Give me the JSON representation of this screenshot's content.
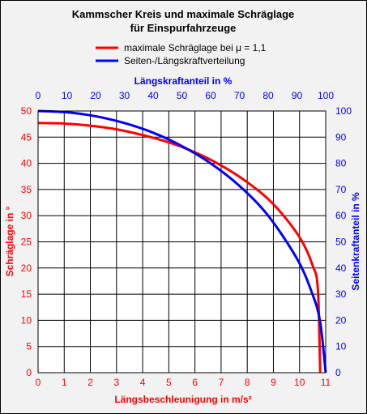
{
  "chart_data": {
    "type": "line",
    "title": [
      "Kammscher Kreis und maximale Schräglage",
      "für Einspurfahrzeuge"
    ],
    "xlabel": "Längsbeschleunigung in m/s²",
    "ylabel": "Schräglage in °",
    "x2label": "Längskraftanteil in %",
    "y2label": "Seitenkraftanteil in %",
    "xlim": [
      0,
      11
    ],
    "ylim": [
      0,
      50
    ],
    "x2lim": [
      0,
      100
    ],
    "y2lim": [
      0,
      100
    ],
    "x_ticks": [
      "0",
      "1",
      "2",
      "3",
      "4",
      "5",
      "6",
      "7",
      "8",
      "9",
      "10",
      "11"
    ],
    "y_ticks": [
      "0",
      "5",
      "10",
      "15",
      "20",
      "25",
      "30",
      "35",
      "40",
      "45",
      "50"
    ],
    "x2_ticks": [
      "0",
      "10",
      "20",
      "30",
      "40",
      "50",
      "60",
      "70",
      "80",
      "90",
      "100"
    ],
    "y2_ticks": [
      "0",
      "10",
      "20",
      "30",
      "40",
      "50",
      "60",
      "70",
      "80",
      "90",
      "100"
    ],
    "grid": true,
    "legend_position": "top-center",
    "colors": {
      "primary": "#ff0000",
      "secondary": "#0000ff",
      "plot_bg": "#ffffff",
      "frame_bg": "#f2f2f2"
    },
    "series": [
      {
        "name": "maximale Schräglage bei μ = 1,1",
        "color": "#ff0000",
        "axes": "primary",
        "x": [
          0,
          1,
          2,
          3,
          4,
          5,
          6,
          7,
          8,
          9,
          10,
          10.5,
          10.7,
          10.79
        ],
        "y": [
          47.7,
          47.6,
          47.2,
          46.5,
          45.4,
          44.0,
          42.1,
          39.6,
          36.4,
          32.2,
          25.9,
          20.5,
          16.0,
          0
        ]
      },
      {
        "name": "Seiten-/Längskraftverteilung",
        "color": "#0000ff",
        "axes": "secondary",
        "x": [
          0,
          10,
          20,
          30,
          40,
          50,
          60,
          70,
          80,
          90,
          95,
          98,
          100
        ],
        "y": [
          100,
          99.5,
          98,
          95.4,
          91.7,
          86.6,
          80,
          71.4,
          60,
          43.6,
          31.2,
          19.9,
          0
        ]
      }
    ]
  }
}
